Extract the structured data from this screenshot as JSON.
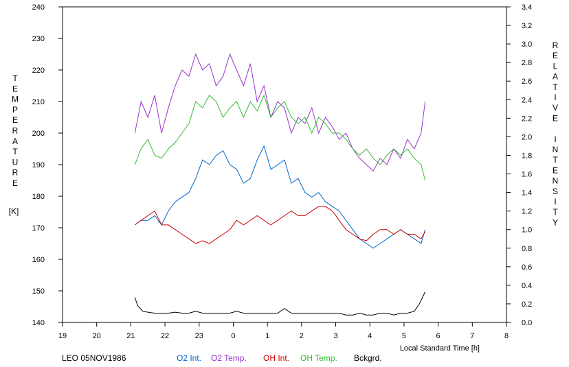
{
  "chart_data": {
    "type": "line",
    "title": "",
    "xlabel": "Local Standard Time [h]",
    "ylabel_left_letters": [
      "T",
      "E",
      "M",
      "P",
      "E",
      "R",
      "A",
      "T",
      "U",
      "R",
      "E"
    ],
    "ylabel_left_unit": "[K]",
    "ylabel_right_letters": [
      "R",
      "E",
      "L",
      "A",
      "T",
      "I",
      "V",
      "E",
      "",
      "I",
      "N",
      "T",
      "E",
      "N",
      "S",
      "I",
      "T",
      "Y"
    ],
    "station_label": "LEO 05NOV1986",
    "x_tick_labels": [
      "19",
      "20",
      "21",
      "22",
      "23",
      "0",
      "1",
      "2",
      "3",
      "4",
      "5",
      "6",
      "7",
      "8"
    ],
    "xlim": [
      19,
      32
    ],
    "y_left_ticks": [
      140,
      150,
      160,
      170,
      180,
      190,
      200,
      210,
      220,
      230,
      240
    ],
    "ylim_left": [
      140,
      240
    ],
    "y_right_ticks": [
      "0.0",
      "0.2",
      "0.4",
      "0.6",
      "0.8",
      "1.0",
      "1.2",
      "1.4",
      "1.6",
      "1.8",
      "2.0",
      "2.2",
      "2.4",
      "2.6",
      "2.8",
      "3.0",
      "3.2",
      "3.4"
    ],
    "ylim_right": [
      0,
      3.4
    ],
    "grid": false,
    "legend_position": "bottom",
    "series": [
      {
        "name": "O2 Int.",
        "color": "#0066cc",
        "axis": "right",
        "x": [
          21.12,
          21.3,
          21.5,
          21.7,
          21.9,
          22.1,
          22.3,
          22.5,
          22.7,
          22.9,
          23.1,
          23.3,
          23.5,
          23.7,
          23.9,
          24.1,
          24.3,
          24.5,
          24.7,
          24.9,
          25.1,
          25.3,
          25.5,
          25.7,
          25.9,
          26.1,
          26.3,
          26.5,
          26.7,
          26.9,
          27.1,
          27.3,
          27.5,
          27.7,
          27.9,
          28.1,
          28.3,
          28.5,
          28.7,
          28.9,
          29.1,
          29.3,
          29.5,
          29.62
        ],
        "y": [
          1.05,
          1.1,
          1.1,
          1.15,
          1.05,
          1.2,
          1.3,
          1.35,
          1.4,
          1.55,
          1.75,
          1.7,
          1.8,
          1.85,
          1.7,
          1.65,
          1.5,
          1.55,
          1.75,
          1.9,
          1.65,
          1.7,
          1.75,
          1.5,
          1.55,
          1.4,
          1.35,
          1.4,
          1.3,
          1.25,
          1.2,
          1.1,
          1.0,
          0.9,
          0.85,
          0.8,
          0.85,
          0.9,
          0.95,
          1.0,
          0.95,
          0.9,
          0.85,
          1.0
        ]
      },
      {
        "name": "O2 Temp.",
        "color": "#9933cc",
        "axis": "left",
        "x": [
          21.12,
          21.3,
          21.5,
          21.7,
          21.9,
          22.1,
          22.3,
          22.5,
          22.7,
          22.9,
          23.1,
          23.3,
          23.5,
          23.7,
          23.9,
          24.1,
          24.3,
          24.5,
          24.7,
          24.9,
          25.1,
          25.3,
          25.5,
          25.7,
          25.9,
          26.1,
          26.3,
          26.5,
          26.7,
          26.9,
          27.1,
          27.3,
          27.5,
          27.7,
          27.9,
          28.1,
          28.3,
          28.5,
          28.7,
          28.9,
          29.1,
          29.3,
          29.5,
          29.62
        ],
        "y": [
          200,
          210,
          205,
          212,
          200,
          208,
          215,
          220,
          218,
          225,
          220,
          222,
          215,
          218,
          225,
          220,
          215,
          222,
          210,
          215,
          205,
          210,
          208,
          200,
          205,
          203,
          208,
          200,
          205,
          202,
          198,
          200,
          195,
          192,
          190,
          188,
          192,
          190,
          195,
          192,
          198,
          195,
          200,
          210
        ]
      },
      {
        "name": "OH Int.",
        "color": "#cc0000",
        "axis": "right",
        "x": [
          21.12,
          21.3,
          21.5,
          21.7,
          21.9,
          22.1,
          22.3,
          22.5,
          22.7,
          22.9,
          23.1,
          23.3,
          23.5,
          23.7,
          23.9,
          24.1,
          24.3,
          24.5,
          24.7,
          24.9,
          25.1,
          25.3,
          25.5,
          25.7,
          25.9,
          26.1,
          26.3,
          26.5,
          26.7,
          26.9,
          27.1,
          27.3,
          27.5,
          27.7,
          27.9,
          28.1,
          28.3,
          28.5,
          28.7,
          28.9,
          29.1,
          29.3,
          29.5,
          29.62
        ],
        "y": [
          1.05,
          1.1,
          1.15,
          1.2,
          1.05,
          1.05,
          1.0,
          0.95,
          0.9,
          0.85,
          0.88,
          0.85,
          0.9,
          0.95,
          1.0,
          1.1,
          1.05,
          1.1,
          1.15,
          1.1,
          1.05,
          1.1,
          1.15,
          1.2,
          1.15,
          1.15,
          1.2,
          1.25,
          1.25,
          1.2,
          1.1,
          1.0,
          0.95,
          0.9,
          0.88,
          0.95,
          1.0,
          1.0,
          0.95,
          1.0,
          0.95,
          0.95,
          0.9,
          0.98
        ]
      },
      {
        "name": "OH Temp.",
        "color": "#33bb33",
        "axis": "left",
        "x": [
          21.12,
          21.3,
          21.5,
          21.7,
          21.9,
          22.1,
          22.3,
          22.5,
          22.7,
          22.9,
          23.1,
          23.3,
          23.5,
          23.7,
          23.9,
          24.1,
          24.3,
          24.5,
          24.7,
          24.9,
          25.1,
          25.3,
          25.5,
          25.7,
          25.9,
          26.1,
          26.3,
          26.5,
          26.7,
          26.9,
          27.1,
          27.3,
          27.5,
          27.7,
          27.9,
          28.1,
          28.3,
          28.5,
          28.7,
          28.9,
          29.1,
          29.3,
          29.5,
          29.62
        ],
        "y": [
          190,
          195,
          198,
          193,
          192,
          195,
          197,
          200,
          203,
          210,
          208,
          212,
          210,
          205,
          208,
          210,
          205,
          210,
          207,
          212,
          205,
          208,
          210,
          205,
          203,
          205,
          200,
          205,
          203,
          200,
          200,
          198,
          195,
          193,
          195,
          192,
          190,
          193,
          195,
          193,
          195,
          192,
          190,
          185
        ]
      },
      {
        "name": "Bckgrd.",
        "color": "#000000",
        "axis": "right",
        "x": [
          21.12,
          21.2,
          21.35,
          21.5,
          21.7,
          21.9,
          22.1,
          22.3,
          22.5,
          22.7,
          22.9,
          23.1,
          23.3,
          23.5,
          23.7,
          23.9,
          24.1,
          24.3,
          24.5,
          24.7,
          24.9,
          25.1,
          25.3,
          25.5,
          25.7,
          25.9,
          26.1,
          26.3,
          26.5,
          26.7,
          26.9,
          27.1,
          27.3,
          27.5,
          27.7,
          27.9,
          28.1,
          28.3,
          28.5,
          28.7,
          28.9,
          29.1,
          29.3,
          29.45,
          29.62
        ],
        "y": [
          0.27,
          0.18,
          0.12,
          0.11,
          0.1,
          0.1,
          0.1,
          0.11,
          0.1,
          0.1,
          0.12,
          0.1,
          0.1,
          0.1,
          0.1,
          0.1,
          0.12,
          0.1,
          0.1,
          0.1,
          0.1,
          0.1,
          0.1,
          0.15,
          0.1,
          0.1,
          0.1,
          0.1,
          0.1,
          0.1,
          0.1,
          0.1,
          0.08,
          0.08,
          0.1,
          0.08,
          0.08,
          0.1,
          0.1,
          0.08,
          0.1,
          0.1,
          0.12,
          0.2,
          0.33
        ]
      }
    ]
  }
}
